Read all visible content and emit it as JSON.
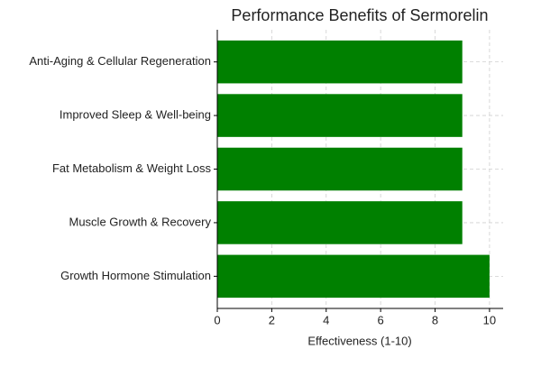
{
  "chart_data": {
    "type": "barh",
    "title": "Performance Benefits of Sermorelin",
    "x_label": "Effectiveness (1-10)",
    "categories": [
      "Growth Hormone Stimulation",
      "Muscle Growth & Recovery",
      "Fat Metabolism & Weight Loss",
      "Improved Sleep & Well-being",
      "Anti-Aging & Cellular Regeneration"
    ],
    "values": [
      10,
      9,
      9,
      9,
      9
    ],
    "color": "#008000",
    "xlim": [
      0,
      10.5
    ],
    "xticks": [
      0,
      2,
      4,
      6,
      8,
      10
    ],
    "grid": true
  }
}
